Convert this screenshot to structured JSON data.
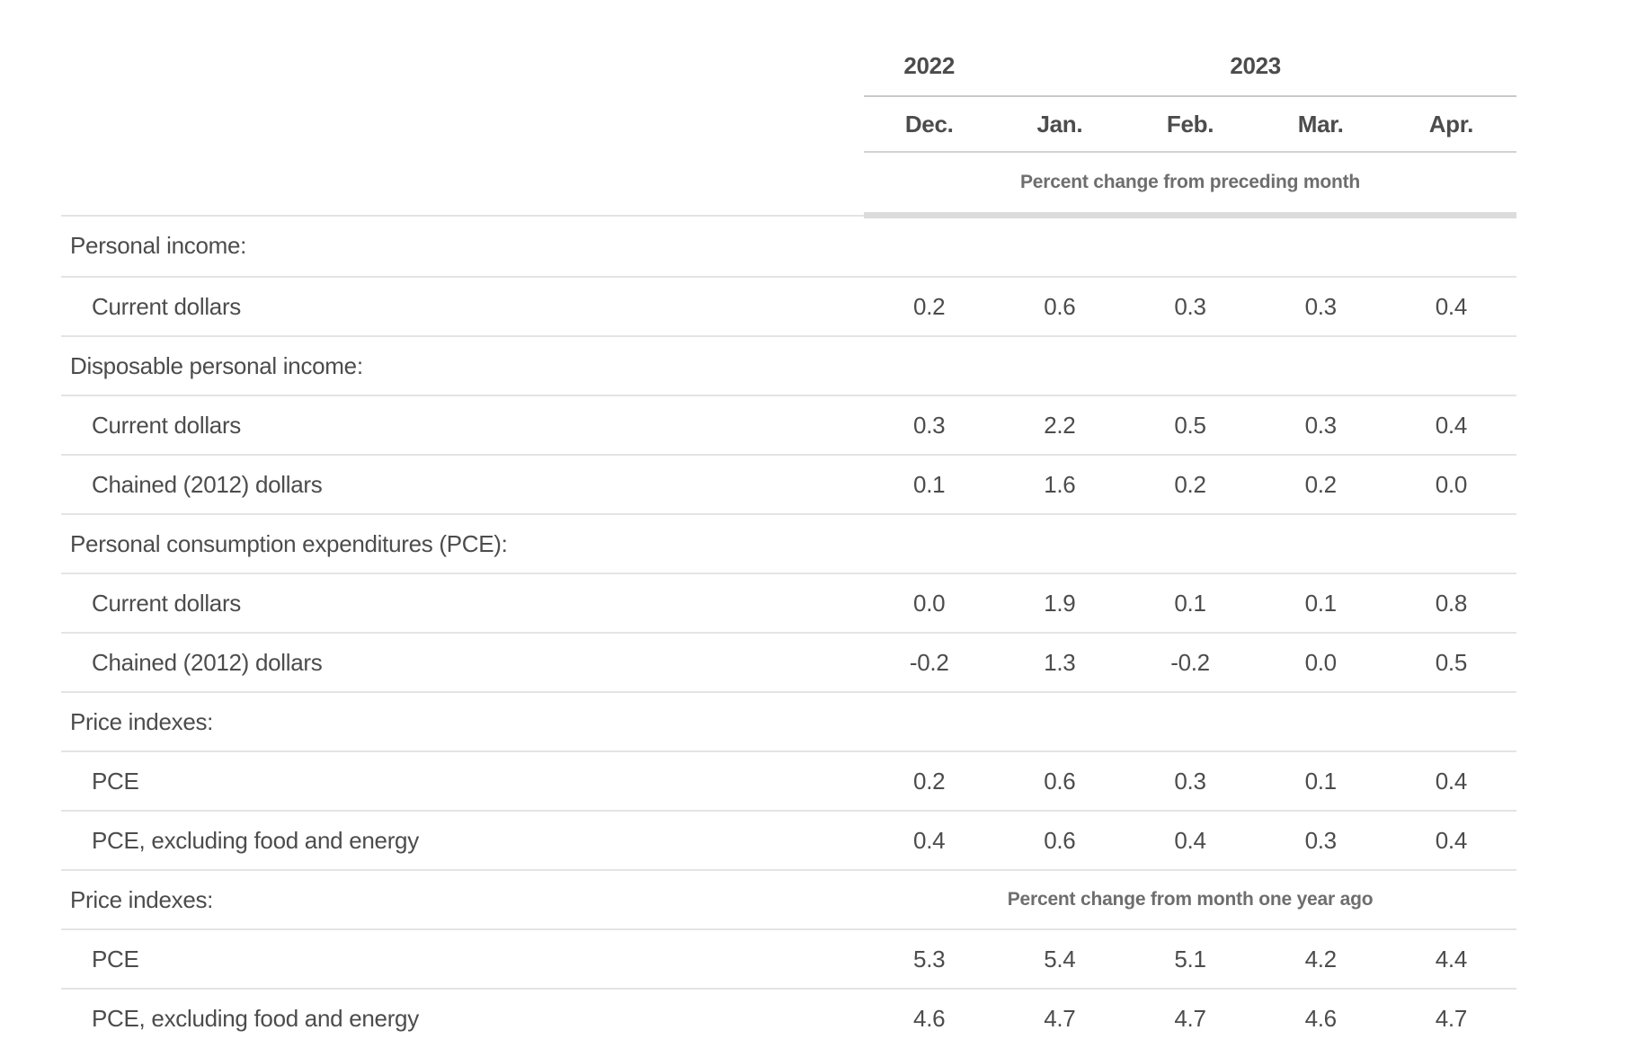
{
  "table": {
    "col_groups": [
      {
        "label": "2022",
        "span": 1
      },
      {
        "label": "2023",
        "span": 4
      }
    ],
    "columns": [
      "Dec.",
      "Jan.",
      "Feb.",
      "Mar.",
      "Apr."
    ],
    "top_note": "Percent change from preceding month",
    "rows": [
      {
        "label": "Personal income:",
        "indent": false,
        "values": [
          "",
          "",
          "",
          "",
          ""
        ]
      },
      {
        "label": "Current dollars",
        "indent": true,
        "values": [
          "0.2",
          "0.6",
          "0.3",
          "0.3",
          "0.4"
        ]
      },
      {
        "label": "Disposable personal income:",
        "indent": false,
        "values": [
          "",
          "",
          "",
          "",
          ""
        ]
      },
      {
        "label": "Current dollars",
        "indent": true,
        "values": [
          "0.3",
          "2.2",
          "0.5",
          "0.3",
          "0.4"
        ]
      },
      {
        "label": "Chained (2012) dollars",
        "indent": true,
        "values": [
          "0.1",
          "1.6",
          "0.2",
          "0.2",
          "0.0"
        ]
      },
      {
        "label": "Personal consumption expenditures (PCE):",
        "indent": false,
        "values": [
          "",
          "",
          "",
          "",
          ""
        ]
      },
      {
        "label": "Current dollars",
        "indent": true,
        "values": [
          "0.0",
          "1.9",
          "0.1",
          "0.1",
          "0.8"
        ]
      },
      {
        "label": "Chained (2012) dollars",
        "indent": true,
        "values": [
          "-0.2",
          "1.3",
          "-0.2",
          "0.0",
          "0.5"
        ]
      },
      {
        "label": "Price indexes:",
        "indent": false,
        "values": [
          "",
          "",
          "",
          "",
          ""
        ]
      },
      {
        "label": "PCE",
        "indent": true,
        "values": [
          "0.2",
          "0.6",
          "0.3",
          "0.1",
          "0.4"
        ]
      },
      {
        "label": "PCE, excluding food and energy",
        "indent": true,
        "values": [
          "0.4",
          "0.6",
          "0.4",
          "0.3",
          "0.4"
        ]
      },
      {
        "label": "Price indexes:",
        "indent": false,
        "note": "Percent change from month one year ago"
      },
      {
        "label": "PCE",
        "indent": true,
        "values": [
          "5.3",
          "5.4",
          "5.1",
          "4.2",
          "4.4"
        ]
      },
      {
        "label": "PCE, excluding food and energy",
        "indent": true,
        "values": [
          "4.6",
          "4.7",
          "4.7",
          "4.6",
          "4.7"
        ]
      }
    ]
  },
  "colors": {
    "text": "#4c4c4c",
    "note_text": "#6e6e6e",
    "row_border": "#e4e4e4",
    "header_border": "#c9c9c9",
    "thick_border": "#dcdcdc",
    "background": "#ffffff"
  },
  "chart_data": {
    "type": "table",
    "column_groups": [
      {
        "year": "2022",
        "months": [
          "Dec."
        ]
      },
      {
        "year": "2023",
        "months": [
          "Jan.",
          "Feb.",
          "Mar.",
          "Apr."
        ]
      }
    ],
    "columns": [
      "Dec. 2022",
      "Jan. 2023",
      "Feb. 2023",
      "Mar. 2023",
      "Apr. 2023"
    ],
    "sections": [
      {
        "unit": "Percent change from preceding month",
        "rows": [
          {
            "group": "Personal income:",
            "label": "Current dollars",
            "values": [
              0.2,
              0.6,
              0.3,
              0.3,
              0.4
            ]
          },
          {
            "group": "Disposable personal income:",
            "label": "Current dollars",
            "values": [
              0.3,
              2.2,
              0.5,
              0.3,
              0.4
            ]
          },
          {
            "group": "Disposable personal income:",
            "label": "Chained (2012) dollars",
            "values": [
              0.1,
              1.6,
              0.2,
              0.2,
              0.0
            ]
          },
          {
            "group": "Personal consumption expenditures (PCE):",
            "label": "Current dollars",
            "values": [
              0.0,
              1.9,
              0.1,
              0.1,
              0.8
            ]
          },
          {
            "group": "Personal consumption expenditures (PCE):",
            "label": "Chained (2012) dollars",
            "values": [
              -0.2,
              1.3,
              -0.2,
              0.0,
              0.5
            ]
          },
          {
            "group": "Price indexes:",
            "label": "PCE",
            "values": [
              0.2,
              0.6,
              0.3,
              0.1,
              0.4
            ]
          },
          {
            "group": "Price indexes:",
            "label": "PCE, excluding food and energy",
            "values": [
              0.4,
              0.6,
              0.4,
              0.3,
              0.4
            ]
          }
        ]
      },
      {
        "unit": "Percent change from month one year ago",
        "rows": [
          {
            "group": "Price indexes:",
            "label": "PCE",
            "values": [
              5.3,
              5.4,
              5.1,
              4.2,
              4.4
            ]
          },
          {
            "group": "Price indexes:",
            "label": "PCE, excluding food and energy",
            "values": [
              4.6,
              4.7,
              4.7,
              4.6,
              4.7
            ]
          }
        ]
      }
    ]
  }
}
